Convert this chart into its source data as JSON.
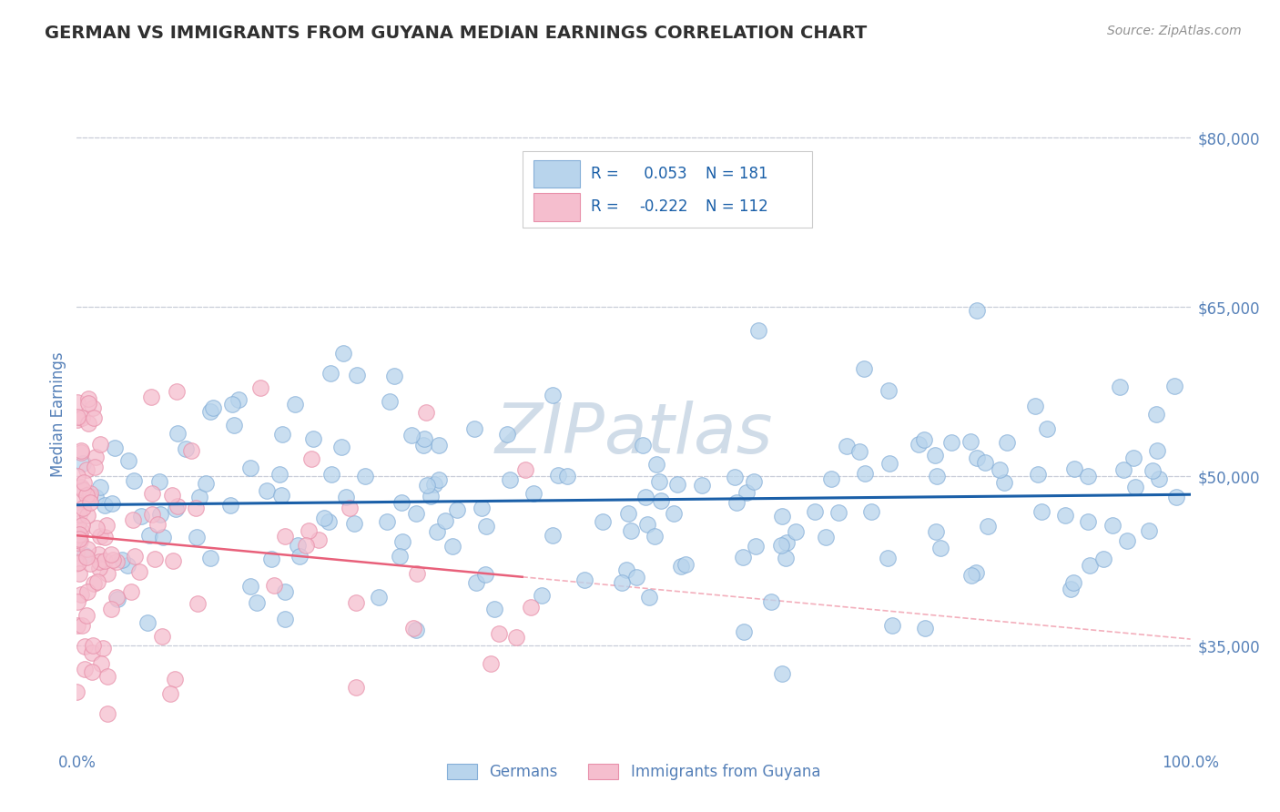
{
  "title": "GERMAN VS IMMIGRANTS FROM GUYANA MEDIAN EARNINGS CORRELATION CHART",
  "source_text": "Source: ZipAtlas.com",
  "ylabel": "Median Earnings",
  "xmin": 0.0,
  "xmax": 100.0,
  "ymin": 26000,
  "ymax": 85000,
  "yticks": [
    35000,
    50000,
    65000,
    80000
  ],
  "ytick_labels": [
    "$35,000",
    "$50,000",
    "$65,000",
    "$80,000"
  ],
  "xtick_labels": [
    "0.0%",
    "100.0%"
  ],
  "blue_color": "#b8d4ec",
  "blue_edge_color": "#85afd8",
  "pink_color": "#f5bece",
  "pink_edge_color": "#e890aa",
  "blue_line_color": "#1a5fa8",
  "pink_line_color": "#e8607a",
  "dashed_line_color": "#c8cdd8",
  "watermark_color": "#d0dce8",
  "title_color": "#303030",
  "axis_label_color": "#5580b8",
  "source_color": "#909090",
  "legend_text_color": "#1a5fa8",
  "background_color": "#ffffff",
  "R_blue": 0.053,
  "N_blue": 181,
  "R_pink": -0.222,
  "N_pink": 112,
  "blue_legend_label": "Germans",
  "pink_legend_label": "Immigrants from Guyana"
}
